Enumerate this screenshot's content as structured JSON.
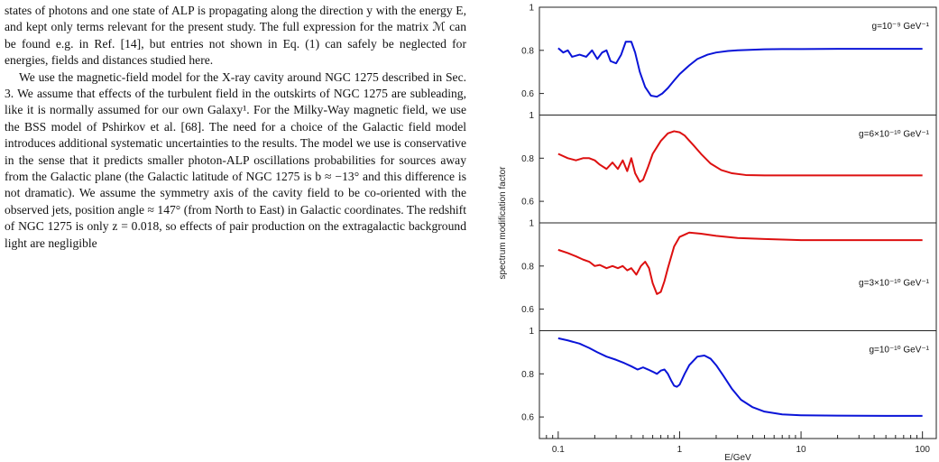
{
  "paper": {
    "paragraphs": [
      "states of photons and one state of ALP is propagating along the direction y with the energy E, and kept only terms relevant for the present study. The full expression for the matrix ℳ can be found e.g. in Ref. [14], but entries not shown in Eq. (1) can safely be neglected for energies, fields and distances studied here.",
      "We use the magnetic-field model for the X-ray cavity around NGC 1275 described in Sec. 3. We assume that effects of the turbulent field in the outskirts of NGC 1275 are subleading, like it is normally assumed for our own Galaxy¹. For the Milky-Way magnetic field, we use the BSS model of Pshirkov et al. [68]. The need for a choice of the Galactic field model introduces additional systematic uncertainties to the results. The model we use is conservative in the sense that it predicts smaller photon-ALP oscillations probabilities for sources away from the Galactic plane (the Galactic latitude of NGC 1275 is b ≈ −13° and this difference is not dramatic). We assume the symmetry axis of the cavity field to be co-oriented with the observed jets, position angle ≈ 147° (from North to East) in Galactic coordinates. The redshift of NGC 1275 is only z = 0.018, so effects of pair production on the extragalactic background light are negligible"
    ]
  },
  "chart_data": {
    "type": "line",
    "xlabel": "E/GeV",
    "ylabel": "spectrum modification factor",
    "xscale": "log",
    "xlim": [
      0.07,
      130
    ],
    "xticks": [
      "0.1",
      "1",
      "10",
      "100"
    ],
    "grid": false,
    "panels": [
      {
        "label": "g=10⁻⁹ GeV⁻¹",
        "color": "#0a14d8",
        "ylim": [
          0.5,
          1.0
        ],
        "yticks": [
          "1",
          "0.8",
          "0.6"
        ],
        "x": [
          0.1,
          0.11,
          0.12,
          0.13,
          0.15,
          0.17,
          0.19,
          0.21,
          0.23,
          0.25,
          0.27,
          0.3,
          0.33,
          0.36,
          0.4,
          0.43,
          0.47,
          0.52,
          0.58,
          0.65,
          0.72,
          0.8,
          0.9,
          1.0,
          1.2,
          1.4,
          1.7,
          2.0,
          2.5,
          3.0,
          4.0,
          5.0,
          7.0,
          10,
          20,
          50,
          100
        ],
        "y": [
          0.81,
          0.79,
          0.8,
          0.77,
          0.78,
          0.77,
          0.8,
          0.76,
          0.79,
          0.8,
          0.75,
          0.74,
          0.78,
          0.84,
          0.84,
          0.79,
          0.7,
          0.63,
          0.59,
          0.585,
          0.6,
          0.625,
          0.66,
          0.69,
          0.73,
          0.76,
          0.78,
          0.79,
          0.797,
          0.8,
          0.803,
          0.805,
          0.806,
          0.806,
          0.807,
          0.807,
          0.807
        ]
      },
      {
        "label": "g=6×10⁻¹⁰ GeV⁻¹",
        "color": "#dd1010",
        "ylim": [
          0.5,
          1.0
        ],
        "yticks": [
          "1",
          "0.8",
          "0.6"
        ],
        "x": [
          0.1,
          0.12,
          0.14,
          0.16,
          0.18,
          0.2,
          0.22,
          0.25,
          0.28,
          0.31,
          0.34,
          0.37,
          0.4,
          0.43,
          0.47,
          0.5,
          0.55,
          0.6,
          0.7,
          0.8,
          0.9,
          1.0,
          1.1,
          1.3,
          1.5,
          1.8,
          2.2,
          2.7,
          3.5,
          5.0,
          7.0,
          10,
          20,
          50,
          100
        ],
        "y": [
          0.82,
          0.8,
          0.79,
          0.8,
          0.8,
          0.79,
          0.77,
          0.75,
          0.78,
          0.75,
          0.79,
          0.74,
          0.8,
          0.73,
          0.69,
          0.7,
          0.76,
          0.82,
          0.88,
          0.915,
          0.925,
          0.92,
          0.905,
          0.86,
          0.82,
          0.775,
          0.745,
          0.73,
          0.722,
          0.72,
          0.72,
          0.72,
          0.72,
          0.72,
          0.72
        ]
      },
      {
        "label": "g=3×10⁻¹⁰ GeV⁻¹",
        "color": "#dd1010",
        "ylim": [
          0.5,
          1.0
        ],
        "yticks": [
          "1",
          "0.8",
          "0.6"
        ],
        "x": [
          0.1,
          0.12,
          0.14,
          0.16,
          0.18,
          0.2,
          0.22,
          0.25,
          0.28,
          0.31,
          0.34,
          0.37,
          0.4,
          0.44,
          0.48,
          0.52,
          0.56,
          0.6,
          0.65,
          0.7,
          0.75,
          0.8,
          0.9,
          1.0,
          1.2,
          1.5,
          2.0,
          3.0,
          5.0,
          10,
          20,
          50,
          100
        ],
        "y": [
          0.875,
          0.86,
          0.845,
          0.83,
          0.82,
          0.8,
          0.805,
          0.79,
          0.8,
          0.79,
          0.8,
          0.78,
          0.79,
          0.76,
          0.8,
          0.82,
          0.79,
          0.72,
          0.67,
          0.68,
          0.73,
          0.79,
          0.89,
          0.935,
          0.955,
          0.95,
          0.94,
          0.93,
          0.925,
          0.92,
          0.92,
          0.92,
          0.92
        ]
      },
      {
        "label": "g=10⁻¹⁰ GeV⁻¹",
        "color": "#0a14d8",
        "ylim": [
          0.5,
          1.0
        ],
        "yticks": [
          "1",
          "0.8",
          "0.6"
        ],
        "x": [
          0.1,
          0.12,
          0.15,
          0.18,
          0.21,
          0.25,
          0.3,
          0.35,
          0.4,
          0.45,
          0.5,
          0.55,
          0.6,
          0.65,
          0.7,
          0.75,
          0.8,
          0.85,
          0.9,
          0.95,
          1.0,
          1.1,
          1.2,
          1.4,
          1.6,
          1.8,
          2.0,
          2.3,
          2.7,
          3.2,
          4.0,
          5.0,
          7.0,
          10,
          20,
          50,
          100
        ],
        "y": [
          0.965,
          0.955,
          0.94,
          0.92,
          0.9,
          0.88,
          0.865,
          0.85,
          0.835,
          0.82,
          0.83,
          0.82,
          0.81,
          0.8,
          0.815,
          0.82,
          0.8,
          0.77,
          0.745,
          0.74,
          0.75,
          0.8,
          0.84,
          0.88,
          0.885,
          0.87,
          0.84,
          0.79,
          0.73,
          0.68,
          0.645,
          0.625,
          0.612,
          0.608,
          0.606,
          0.605,
          0.605
        ]
      }
    ]
  }
}
